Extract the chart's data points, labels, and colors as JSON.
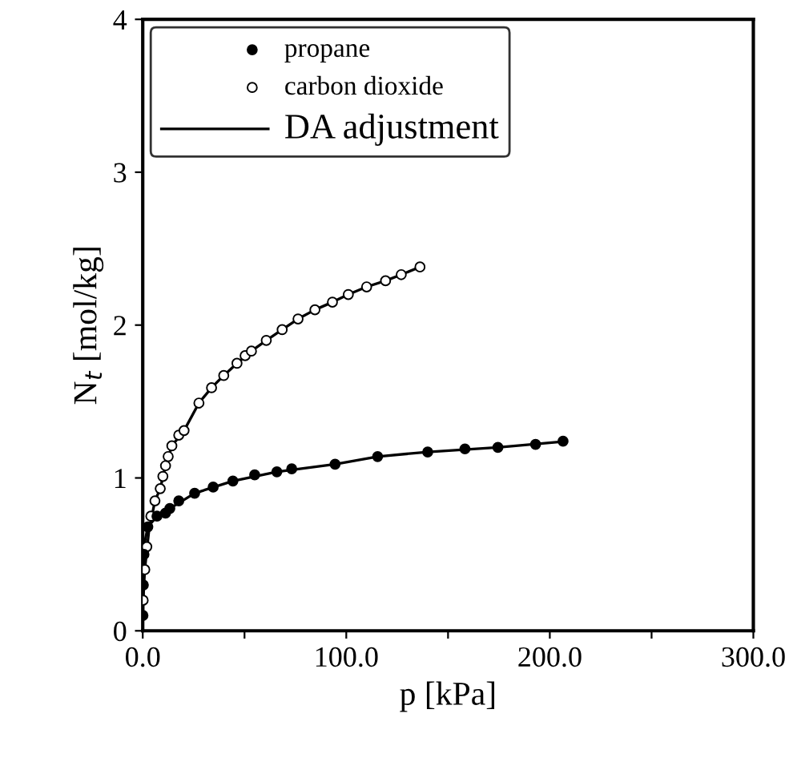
{
  "chart_data": {
    "type": "scatter",
    "xlabel": "p [kPa]",
    "ylabel": "N$_{t}$ [mol/kg]",
    "xlim": [
      0,
      300
    ],
    "ylim": [
      0,
      4
    ],
    "xticks": [
      {
        "value": 0,
        "label": "0.0"
      },
      {
        "value": 50,
        "label": null
      },
      {
        "value": 100,
        "label": "100.0"
      },
      {
        "value": 150,
        "label": null
      },
      {
        "value": 200,
        "label": "200.0"
      },
      {
        "value": 250,
        "label": null
      },
      {
        "value": 300,
        "label": "300.0"
      }
    ],
    "yticks": [
      0,
      1,
      2,
      3,
      4
    ],
    "legend": "top left",
    "series": [
      {
        "name": "propane",
        "marker": "circle",
        "color": "#000000",
        "x": [
          0.1,
          0.3,
          0.6,
          2.5,
          7,
          11.2,
          13.3,
          17.7,
          25.5,
          34.6,
          44.3,
          55,
          65.9,
          73.2,
          94.5,
          115.4,
          140,
          158.3,
          174.5,
          193,
          206.5
        ],
        "values": [
          0.1,
          0.3,
          0.5,
          0.68,
          0.75,
          0.77,
          0.8,
          0.85,
          0.9,
          0.94,
          0.98,
          1.02,
          1.04,
          1.06,
          1.09,
          1.14,
          1.17,
          1.19,
          1.2,
          1.22,
          1.24
        ]
      },
      {
        "name": "carbon dioxide",
        "marker": "circle",
        "color": "#ffffff",
        "x": [
          0.2,
          1,
          2,
          4,
          6,
          8.6,
          9.9,
          11.2,
          12.5,
          14.3,
          17.7,
          20.3,
          27.6,
          33.8,
          39.8,
          46.3,
          50.3,
          53.4,
          60.7,
          68.5,
          76.3,
          84.6,
          93.2,
          101,
          110,
          119.3,
          127,
          136.2
        ],
        "values": [
          0.2,
          0.4,
          0.55,
          0.75,
          0.85,
          0.93,
          1.01,
          1.08,
          1.14,
          1.21,
          1.28,
          1.31,
          1.49,
          1.59,
          1.67,
          1.75,
          1.8,
          1.83,
          1.9,
          1.97,
          2.04,
          2.1,
          2.15,
          2.2,
          2.25,
          2.29,
          2.33,
          2.38
        ]
      },
      {
        "name": "DA adjustment",
        "type": "line",
        "marker": "none",
        "line_style": "solid",
        "color": "#000000",
        "x": [
          0.1,
          0.4,
          1,
          2.5,
          7,
          13.3,
          25.5,
          44.3,
          65.9,
          94.5,
          115.4,
          140,
          174.5,
          208
        ],
        "values": [
          0.1,
          0.4,
          0.58,
          0.68,
          0.75,
          0.8,
          0.9,
          0.98,
          1.04,
          1.09,
          1.14,
          1.17,
          1.2,
          1.24
        ]
      },
      {
        "type": "line",
        "marker": "none",
        "line_style": "solid",
        "color": "#000000",
        "x": [
          0.2,
          1,
          3,
          6,
          8.6,
          11.2,
          14.3,
          20.3,
          27.6,
          33.8,
          39.8,
          46.3,
          53.4,
          60.7,
          68.5,
          76.3,
          84.6,
          93.2,
          101,
          110,
          119.3,
          127,
          138
        ],
        "values": [
          0.2,
          0.4,
          0.65,
          0.85,
          0.93,
          1.08,
          1.21,
          1.31,
          1.49,
          1.59,
          1.67,
          1.75,
          1.83,
          1.9,
          1.97,
          2.04,
          2.1,
          2.15,
          2.2,
          2.25,
          2.29,
          2.33,
          2.39
        ]
      }
    ]
  }
}
